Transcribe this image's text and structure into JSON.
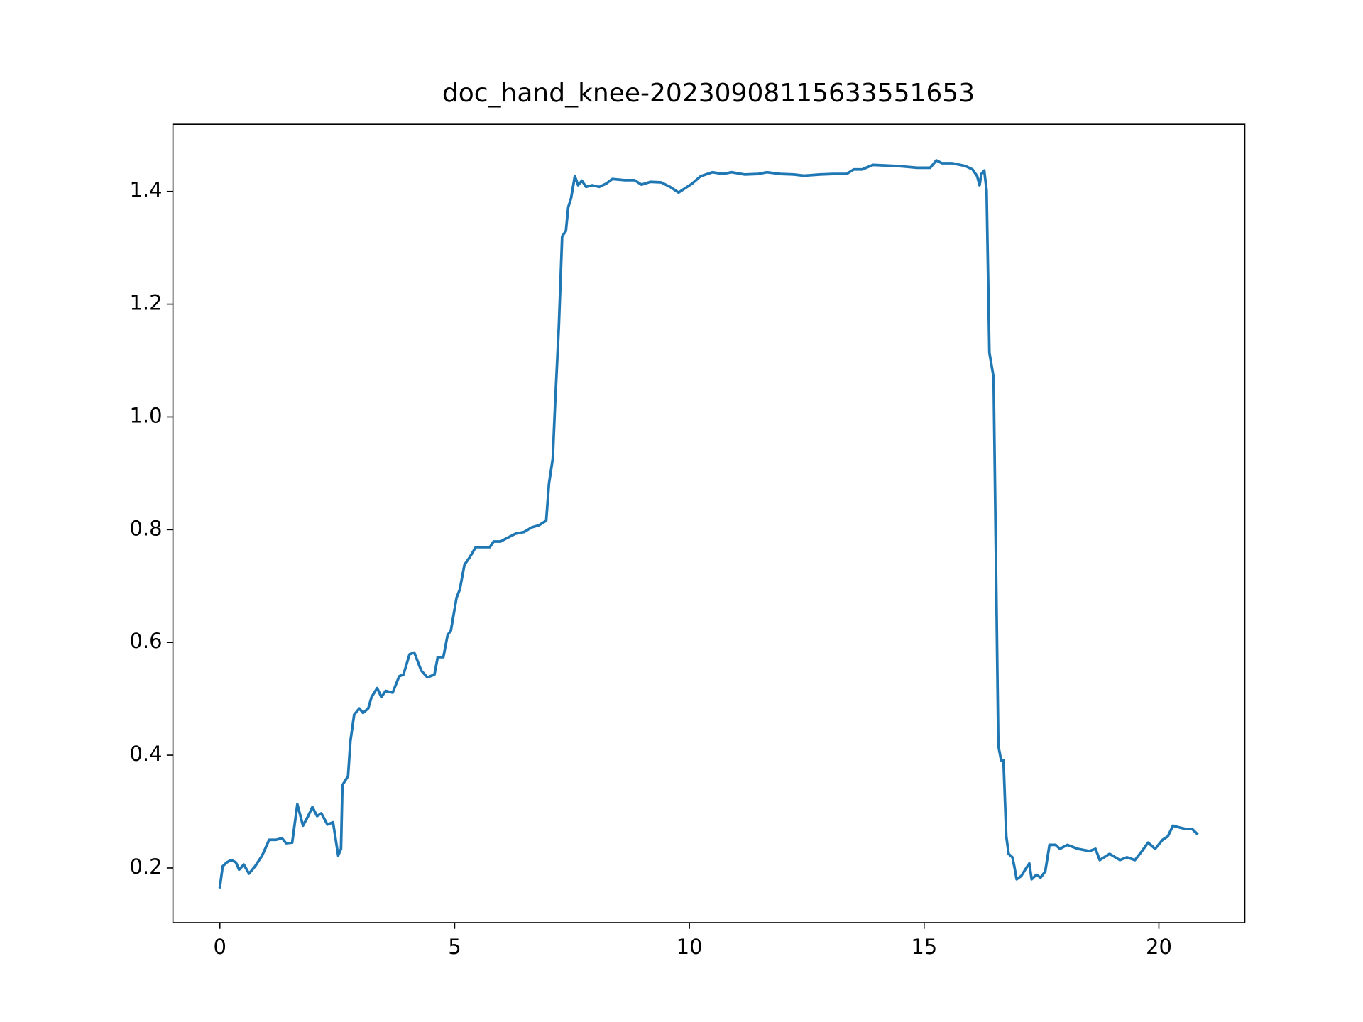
{
  "chart_data": {
    "type": "line",
    "title": "doc_hand_knee-20230908115633551653",
    "x": [
      0,
      0.06,
      0.15,
      0.24,
      0.34,
      0.41,
      0.51,
      0.62,
      0.75,
      0.9,
      1.05,
      1.2,
      1.32,
      1.41,
      1.54,
      1.65,
      1.77,
      1.88,
      1.97,
      2.07,
      2.16,
      2.29,
      2.41,
      2.52,
      2.58,
      2.61,
      2.73,
      2.78,
      2.86,
      2.97,
      3.05,
      3.16,
      3.23,
      3.35,
      3.44,
      3.53,
      3.68,
      3.82,
      3.91,
      4.04,
      4.14,
      4.29,
      4.42,
      4.57,
      4.64,
      4.76,
      4.85,
      4.92,
      5.04,
      5.11,
      5.21,
      5.32,
      5.45,
      5.75,
      5.83,
      5.98,
      6.11,
      6.3,
      6.48,
      6.64,
      6.8,
      6.95,
      7.01,
      7.09,
      7.14,
      7.22,
      7.29,
      7.37,
      7.42,
      7.48,
      7.56,
      7.63,
      7.71,
      7.8,
      7.93,
      8.08,
      8.23,
      8.36,
      8.61,
      8.83,
      8.98,
      9.17,
      9.4,
      9.59,
      9.77,
      10.06,
      10.24,
      10.49,
      10.71,
      10.9,
      11.18,
      11.47,
      11.65,
      11.94,
      12.22,
      12.44,
      12.78,
      13.06,
      13.35,
      13.5,
      13.68,
      13.91,
      14.44,
      14.85,
      15.13,
      15.26,
      15.38,
      15.6,
      15.88,
      16.03,
      16.13,
      16.18,
      16.22,
      16.28,
      16.33,
      16.39,
      16.48,
      16.58,
      16.64,
      16.69,
      16.75,
      16.8,
      16.88,
      16.92,
      16.97,
      17.07,
      17.16,
      17.24,
      17.29,
      17.39,
      17.48,
      17.58,
      17.67,
      17.8,
      17.89,
      18.05,
      18.27,
      18.52,
      18.65,
      18.74,
      18.95,
      19.17,
      19.32,
      19.49,
      19.64,
      19.77,
      19.92,
      20.08,
      20.19,
      20.3,
      20.43,
      20.58,
      20.71,
      20.81
    ],
    "series": [
      {
        "color": "#1f77b4",
        "values": [
          0.166,
          0.203,
          0.21,
          0.214,
          0.21,
          0.197,
          0.206,
          0.19,
          0.203,
          0.222,
          0.25,
          0.25,
          0.253,
          0.244,
          0.245,
          0.313,
          0.275,
          0.292,
          0.308,
          0.292,
          0.297,
          0.277,
          0.281,
          0.222,
          0.234,
          0.347,
          0.363,
          0.425,
          0.472,
          0.483,
          0.475,
          0.483,
          0.503,
          0.519,
          0.503,
          0.514,
          0.511,
          0.54,
          0.543,
          0.579,
          0.582,
          0.55,
          0.538,
          0.543,
          0.574,
          0.574,
          0.613,
          0.621,
          0.679,
          0.694,
          0.738,
          0.751,
          0.769,
          0.769,
          0.779,
          0.779,
          0.785,
          0.793,
          0.796,
          0.804,
          0.808,
          0.816,
          0.882,
          0.926,
          1.023,
          1.161,
          1.32,
          1.33,
          1.372,
          1.388,
          1.427,
          1.411,
          1.419,
          1.408,
          1.411,
          1.408,
          1.414,
          1.422,
          1.42,
          1.42,
          1.412,
          1.417,
          1.416,
          1.408,
          1.398,
          1.414,
          1.427,
          1.434,
          1.431,
          1.434,
          1.43,
          1.431,
          1.434,
          1.431,
          1.43,
          1.428,
          1.43,
          1.431,
          1.431,
          1.439,
          1.439,
          1.447,
          1.445,
          1.442,
          1.442,
          1.455,
          1.45,
          1.45,
          1.445,
          1.439,
          1.427,
          1.411,
          1.431,
          1.437,
          1.402,
          1.114,
          1.07,
          0.417,
          0.391,
          0.391,
          0.256,
          0.225,
          0.219,
          0.203,
          0.18,
          0.186,
          0.198,
          0.208,
          0.18,
          0.188,
          0.183,
          0.194,
          0.241,
          0.241,
          0.234,
          0.241,
          0.234,
          0.23,
          0.234,
          0.214,
          0.225,
          0.214,
          0.219,
          0.214,
          0.23,
          0.245,
          0.234,
          0.25,
          0.256,
          0.275,
          0.272,
          0.269,
          0.269,
          0.261
        ]
      }
    ],
    "xlim": [
      -1.0,
      21.83
    ],
    "xticks": [
      0,
      5,
      10,
      15,
      20
    ],
    "ylim": [
      0.103,
      1.519
    ],
    "yticks": [
      0.2,
      0.4,
      0.6,
      0.8,
      {
        "value": 1.0,
        "label": "1.0"
      },
      1.2,
      1.4
    ],
    "grid": false
  }
}
